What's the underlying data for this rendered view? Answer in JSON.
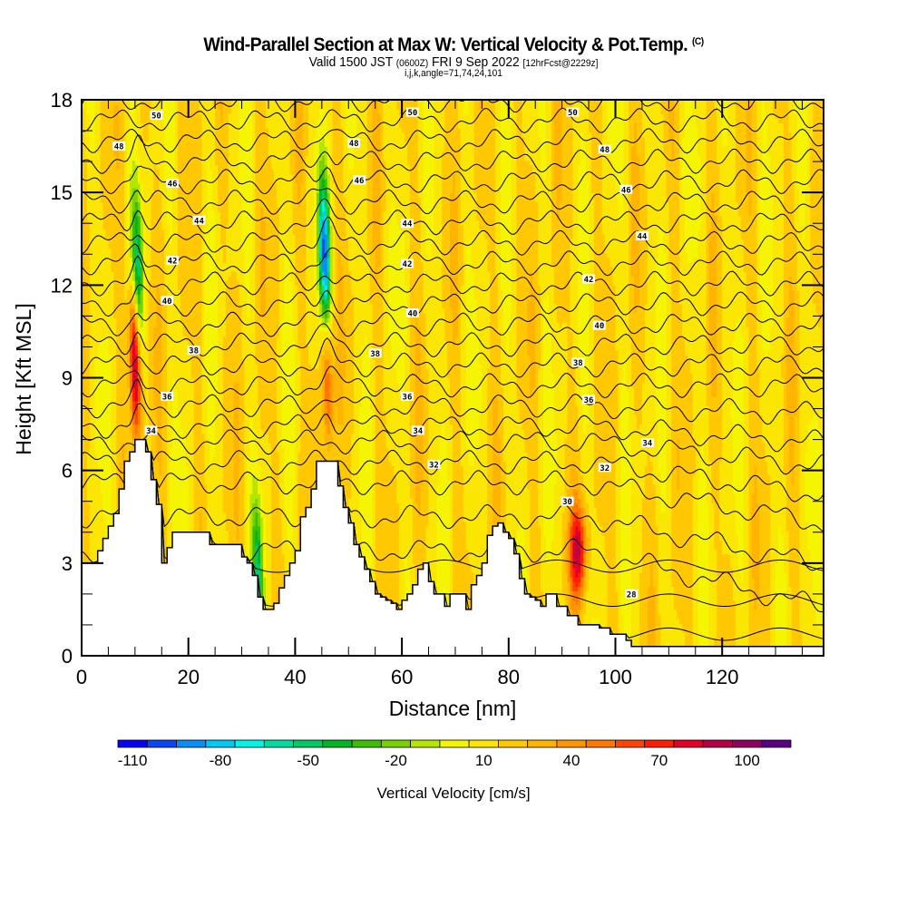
{
  "header": {
    "title": "Wind-Parallel Section at Max W: Vertical Velocity & Pot.Temp.",
    "title_mark": "(C)",
    "valid_main": "Valid 1500 JST",
    "valid_utc": "(0600Z)",
    "valid_date": "FRI 9 Sep 2022",
    "forecast": "[12hrFcst@2229z]",
    "indices": "i,j,k,angle=71,74,24,101"
  },
  "chart_data": {
    "type": "heatmap",
    "title": "Wind-Parallel Section at Max W: Vertical Velocity & Pot.Temp.",
    "xlabel": "Distance [nm]",
    "ylabel": "Height [Kft MSL]",
    "xlim": [
      0,
      139
    ],
    "ylim": [
      0,
      18
    ],
    "xticks": [
      0,
      20,
      40,
      60,
      80,
      100,
      120
    ],
    "yticks": [
      0,
      3,
      6,
      9,
      12,
      15,
      18
    ],
    "x_minor_step": 5,
    "y_minor_step": 1,
    "grid": false,
    "colorbar": {
      "title": "Vertical Velocity [cm/s]",
      "placement": "bottom",
      "levels": [
        -120,
        -110,
        -100,
        -90,
        -80,
        -70,
        -60,
        -50,
        -40,
        -30,
        -20,
        -10,
        0,
        10,
        20,
        30,
        40,
        50,
        60,
        70,
        80,
        90,
        100,
        110,
        120
      ],
      "tick_labels": [
        "-110",
        "-80",
        "-50",
        "-20",
        "10",
        "40",
        "70",
        "100"
      ],
      "tick_values": [
        -110,
        -80,
        -50,
        -20,
        10,
        40,
        70,
        100
      ],
      "colors": [
        "#0a00f5",
        "#0a46f5",
        "#0a8cf5",
        "#00c8f5",
        "#00f5e6",
        "#00dca0",
        "#00c864",
        "#00b428",
        "#3cbe00",
        "#78d200",
        "#b4e600",
        "#f5f500",
        "#fae600",
        "#ffc800",
        "#ffb400",
        "#ff9600",
        "#ff7800",
        "#ff4600",
        "#ff1e00",
        "#e10028",
        "#b40046",
        "#8c005f",
        "#5a0082"
      ]
    },
    "contours": {
      "variable": "Potential Temperature",
      "units": "C",
      "interval": 1,
      "labels": [
        {
          "value": 50,
          "x": 14,
          "y": 17.5
        },
        {
          "value": 50,
          "x": 62,
          "y": 17.6
        },
        {
          "value": 50,
          "x": 92,
          "y": 17.6
        },
        {
          "value": 48,
          "x": 7,
          "y": 16.5
        },
        {
          "value": 48,
          "x": 51,
          "y": 16.6
        },
        {
          "value": 48,
          "x": 98,
          "y": 16.4
        },
        {
          "value": 46,
          "x": 17,
          "y": 15.3
        },
        {
          "value": 46,
          "x": 52,
          "y": 15.4
        },
        {
          "value": 46,
          "x": 102,
          "y": 15.1
        },
        {
          "value": 44,
          "x": 22,
          "y": 14.1
        },
        {
          "value": 44,
          "x": 61,
          "y": 14.0
        },
        {
          "value": 44,
          "x": 105,
          "y": 13.6
        },
        {
          "value": 42,
          "x": 17,
          "y": 12.8
        },
        {
          "value": 42,
          "x": 61,
          "y": 12.7
        },
        {
          "value": 42,
          "x": 95,
          "y": 12.2
        },
        {
          "value": 40,
          "x": 16,
          "y": 11.5
        },
        {
          "value": 40,
          "x": 62,
          "y": 11.1
        },
        {
          "value": 40,
          "x": 97,
          "y": 10.7
        },
        {
          "value": 38,
          "x": 21,
          "y": 9.9
        },
        {
          "value": 38,
          "x": 55,
          "y": 9.8
        },
        {
          "value": 38,
          "x": 93,
          "y": 9.5
        },
        {
          "value": 36,
          "x": 16,
          "y": 8.4
        },
        {
          "value": 36,
          "x": 61,
          "y": 8.4
        },
        {
          "value": 36,
          "x": 95,
          "y": 8.3
        },
        {
          "value": 34,
          "x": 13,
          "y": 7.3
        },
        {
          "value": 34,
          "x": 63,
          "y": 7.3
        },
        {
          "value": 34,
          "x": 106,
          "y": 6.9
        },
        {
          "value": 32,
          "x": 66,
          "y": 6.2
        },
        {
          "value": 32,
          "x": 98,
          "y": 6.1
        },
        {
          "value": 30,
          "x": 91,
          "y": 5.0
        },
        {
          "value": 28,
          "x": 103,
          "y": 2.0
        }
      ]
    },
    "features": [
      {
        "type": "updraft",
        "x": 10,
        "y_center": 9.5,
        "peak_cms": 90
      },
      {
        "type": "downdraft",
        "x": 10.5,
        "y_center": 12.5,
        "peak_cms": -60
      },
      {
        "type": "downdraft",
        "x": 45.5,
        "y_center": 13.0,
        "peak_cms": -105
      },
      {
        "type": "updraft",
        "x": 46,
        "y_center": 9.0,
        "peak_cms": 50
      },
      {
        "type": "updraft",
        "x": 93,
        "y_center": 3.4,
        "peak_cms": 65
      },
      {
        "type": "downdraft",
        "x": 33,
        "y_center": 2.6,
        "peak_cms": -55
      }
    ],
    "terrain_kft": {
      "x": [
        0,
        1,
        2,
        3,
        4,
        5,
        6,
        7,
        8,
        9,
        10,
        11,
        12,
        13,
        14,
        15,
        16,
        17,
        18,
        19,
        20,
        21,
        22,
        23,
        24,
        25,
        26,
        27,
        28,
        29,
        30,
        31,
        32,
        33,
        34,
        35,
        36,
        37,
        38,
        39,
        40,
        41,
        42,
        43,
        44,
        45,
        46,
        47,
        48,
        49,
        50,
        51,
        52,
        53,
        54,
        55,
        56,
        57,
        58,
        59,
        60,
        61,
        62,
        63,
        64,
        65,
        66,
        67,
        68,
        69,
        70,
        71,
        72,
        73,
        74,
        75,
        76,
        77,
        78,
        79,
        80,
        81,
        82,
        83,
        84,
        85,
        86,
        87,
        88,
        89,
        90,
        91,
        92,
        93,
        94,
        95,
        96,
        97,
        98,
        99,
        100,
        101,
        102,
        103,
        104,
        105,
        106,
        139
      ],
      "h": [
        3.0,
        3.0,
        3.0,
        3.4,
        3.8,
        4.2,
        4.6,
        5.4,
        6.3,
        6.6,
        7.0,
        7.0,
        6.6,
        5.7,
        4.9,
        3.0,
        3.5,
        4.0,
        4.0,
        4.0,
        4.0,
        4.0,
        4.0,
        4.0,
        3.6,
        3.6,
        3.6,
        3.6,
        3.6,
        3.6,
        3.2,
        3.0,
        2.6,
        1.9,
        1.5,
        1.5,
        1.7,
        2.2,
        2.6,
        3.0,
        3.4,
        4.5,
        4.8,
        5.4,
        6.3,
        6.3,
        6.3,
        6.3,
        5.5,
        4.8,
        4.3,
        3.6,
        3.2,
        2.8,
        2.4,
        2.0,
        1.9,
        1.8,
        1.7,
        1.5,
        1.8,
        2.0,
        2.3,
        2.8,
        3.0,
        2.4,
        2.0,
        2.0,
        1.6,
        2.0,
        2.0,
        2.0,
        1.5,
        2.3,
        2.6,
        3.0,
        3.9,
        4.2,
        4.3,
        4.0,
        3.8,
        3.3,
        2.5,
        2.0,
        1.9,
        1.8,
        1.6,
        2.0,
        2.0,
        1.6,
        1.6,
        1.3,
        1.3,
        1.0,
        1.0,
        1.0,
        1.0,
        0.9,
        0.9,
        0.7,
        0.7,
        0.7,
        0.5,
        0.3,
        0.3,
        0.3,
        0.3,
        0.3
      ]
    }
  }
}
